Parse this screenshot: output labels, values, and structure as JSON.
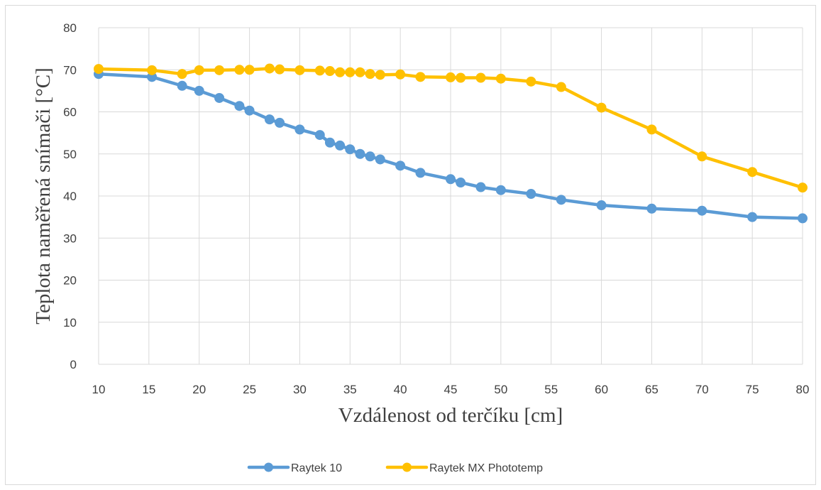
{
  "chart_data": {
    "type": "line",
    "title": "",
    "xlabel": "Vzdálenost od terčíku [cm]",
    "ylabel": "Teplota naměřená snímači [°C]",
    "xlim": [
      10,
      80
    ],
    "ylim": [
      0,
      80
    ],
    "x_ticks": [
      10,
      15,
      20,
      25,
      30,
      35,
      40,
      45,
      50,
      55,
      60,
      65,
      70,
      75,
      80
    ],
    "y_ticks": [
      0,
      10,
      20,
      30,
      40,
      50,
      60,
      70,
      80
    ],
    "grid": true,
    "legend_position": "bottom",
    "series": [
      {
        "name": "Raytek 10",
        "color": "#5b9bd5",
        "x": [
          10,
          15.3,
          18.3,
          20,
          22,
          24,
          25,
          27,
          28,
          30,
          32,
          33,
          34,
          35,
          36,
          37,
          38,
          40,
          42,
          45,
          46,
          48,
          50,
          53,
          56,
          60,
          65,
          70,
          75,
          80
        ],
        "y": [
          69,
          68.3,
          66.2,
          65,
          63.3,
          61.4,
          60.3,
          58.2,
          57.4,
          55.8,
          54.5,
          52.7,
          52,
          51.1,
          50,
          49.4,
          48.7,
          47.2,
          45.5,
          44,
          43.2,
          42.1,
          41.4,
          40.5,
          39.1,
          37.8,
          37,
          36.5,
          35,
          34.7
        ]
      },
      {
        "name": "Raytek MX Phototemp",
        "color": "#ffc000",
        "x": [
          10,
          15.3,
          18.3,
          20,
          22,
          24,
          25,
          27,
          28,
          30,
          32,
          33,
          34,
          35,
          36,
          37,
          38,
          40,
          42,
          45,
          46,
          48,
          50,
          53,
          56,
          60,
          65,
          70,
          75,
          80
        ],
        "y": [
          70.2,
          69.9,
          69,
          69.9,
          69.9,
          70,
          70,
          70.3,
          70.1,
          69.9,
          69.8,
          69.7,
          69.4,
          69.4,
          69.4,
          69,
          68.8,
          68.9,
          68.3,
          68.2,
          68.1,
          68.1,
          67.9,
          67.2,
          65.9,
          61,
          55.8,
          49.4,
          45.7,
          42
        ]
      }
    ]
  }
}
